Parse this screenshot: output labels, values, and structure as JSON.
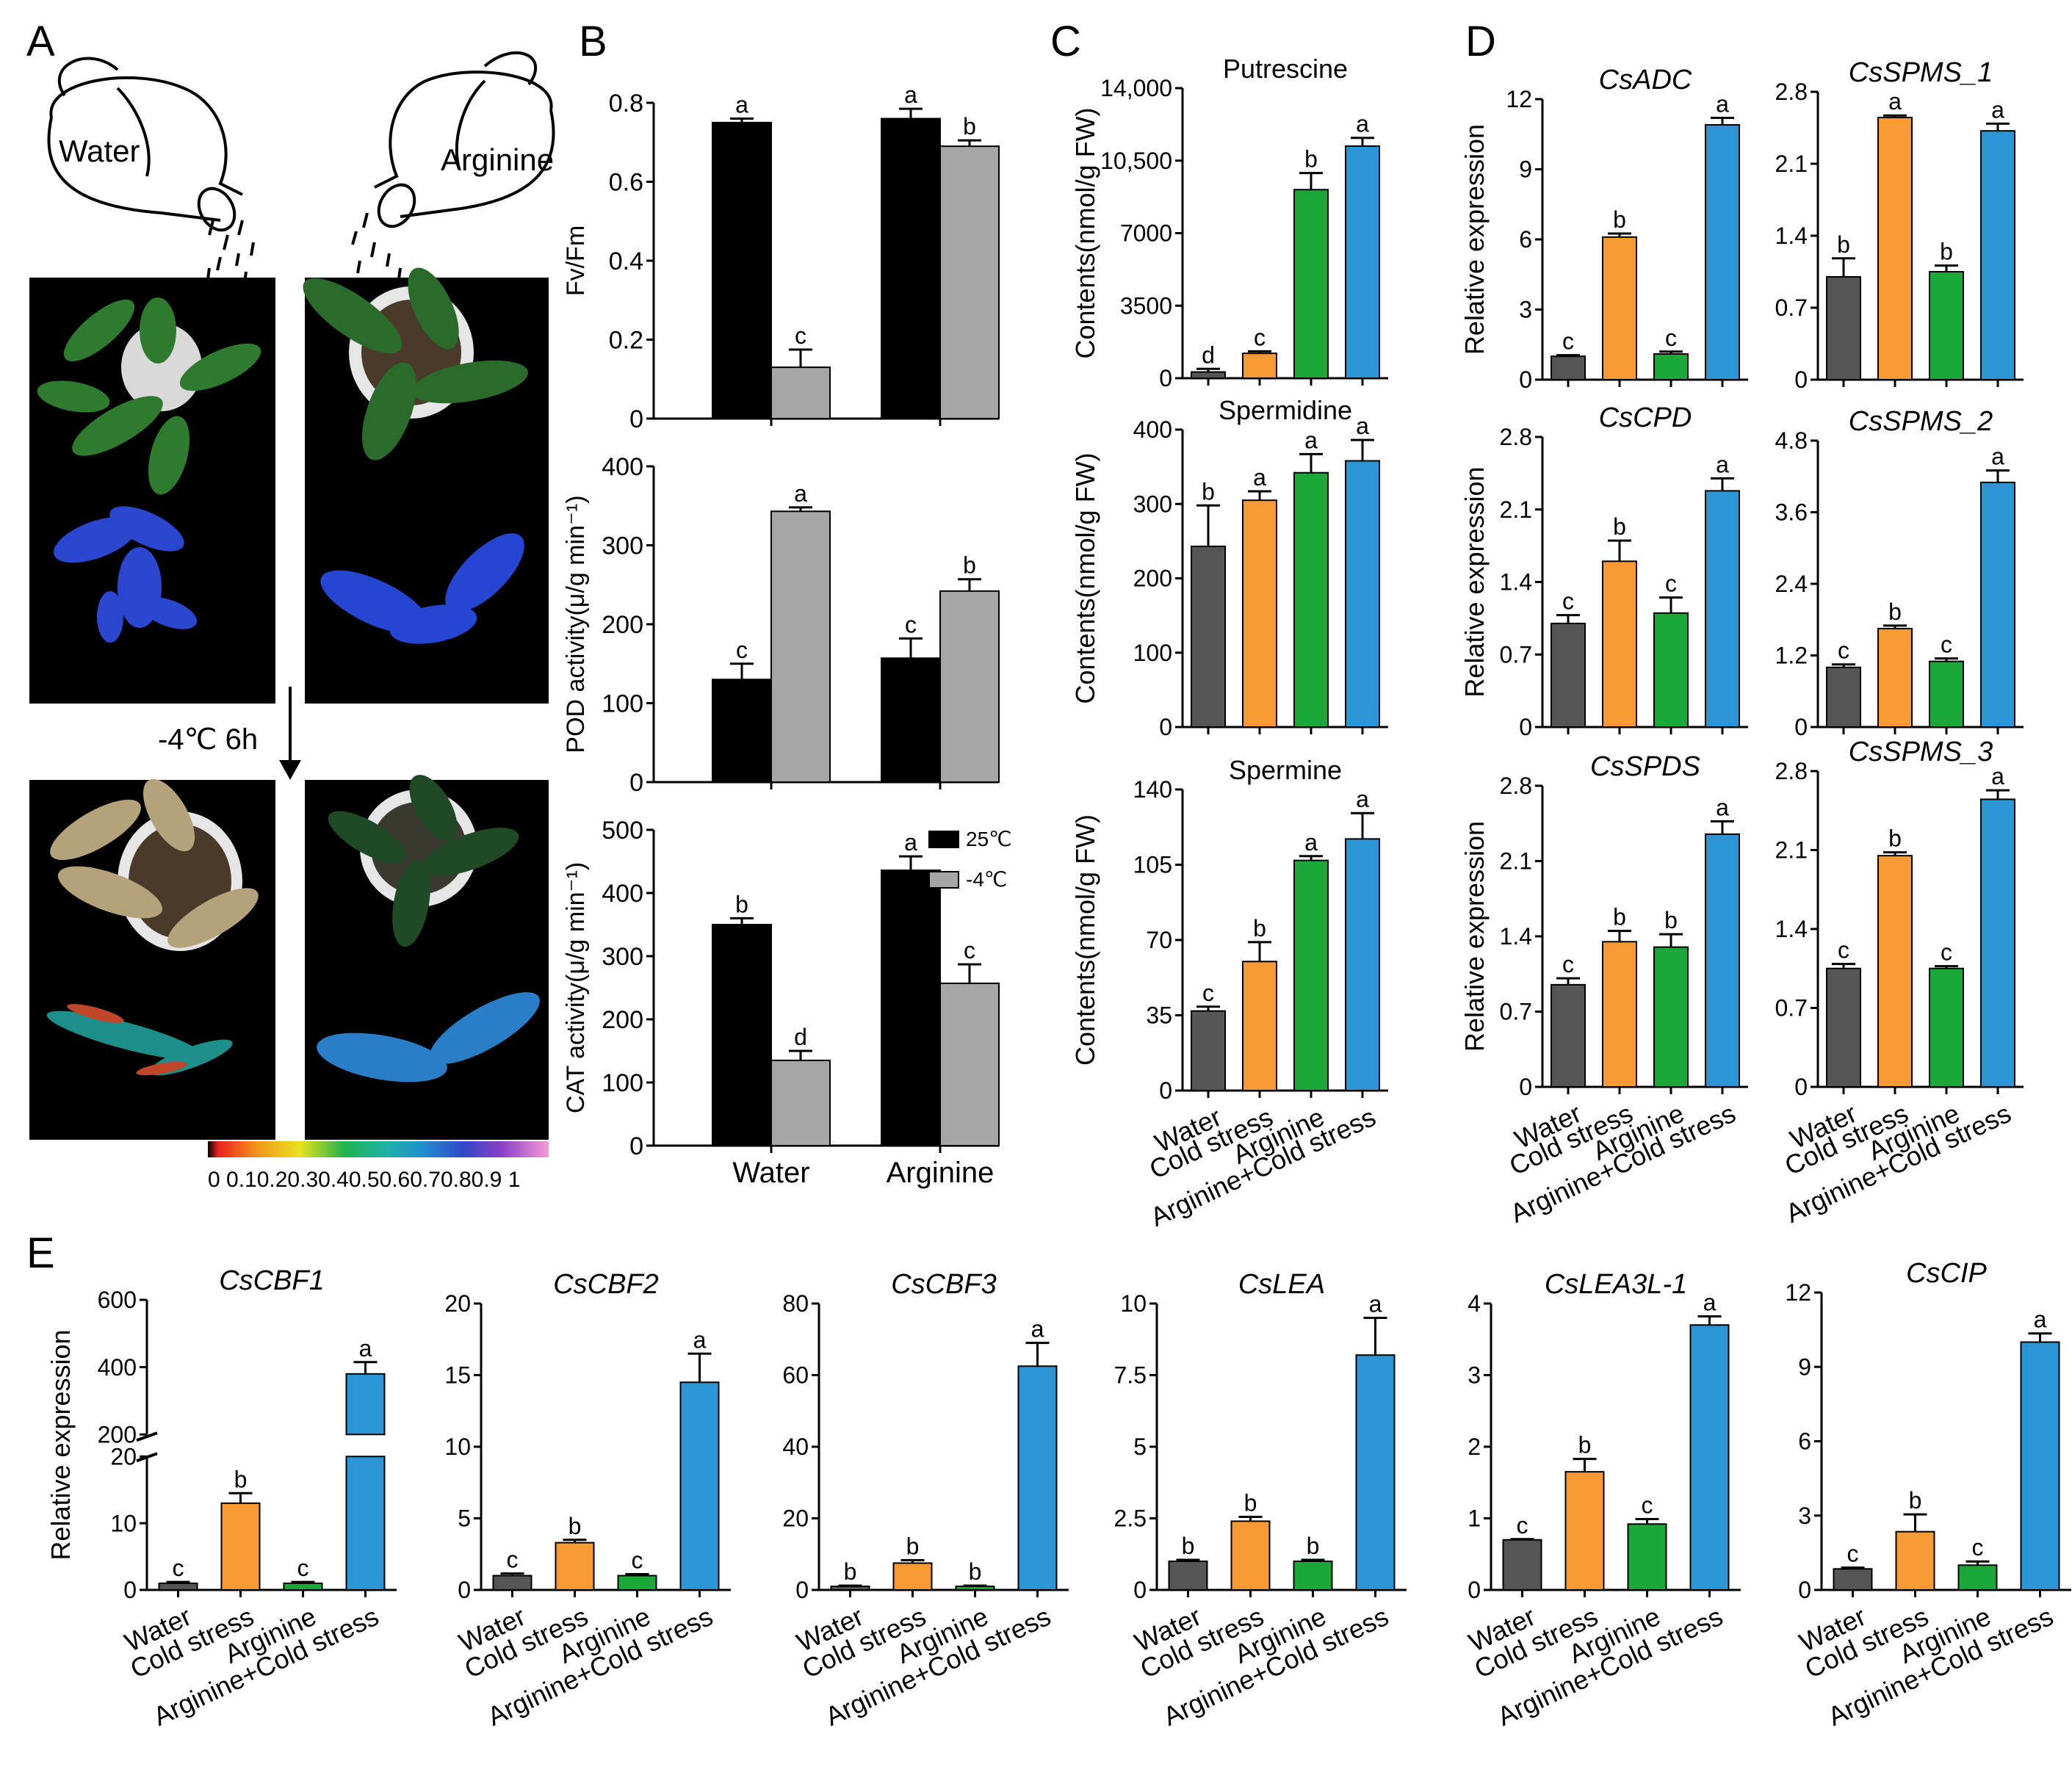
{
  "panel_labels": [
    "A",
    "B",
    "C",
    "D",
    "E"
  ],
  "colors": {
    "water": "#555555",
    "cold_stress": "#f79a34",
    "arginine": "#1aa83a",
    "arginine_cold": "#2b96d3",
    "temp_25": "#000000",
    "temp_minus4": "#a6a6a6"
  },
  "panel_a": {
    "can_left_label": "Water",
    "can_right_label": "Arginine",
    "treatment_label": "-4℃ 6h",
    "colorbar_ticks": [
      "0",
      "0.1",
      "0.2",
      "0.3",
      "0.4",
      "0.5",
      "0.6",
      "0.7",
      "0.8",
      "0.9",
      "1"
    ],
    "colorbar_text": "0   0.10.20.30.40.50.60.70.80.9 1"
  },
  "chart_data": [
    {
      "id": "B1",
      "type": "bar",
      "panel": "B",
      "categories": [
        "Water",
        "Arginine"
      ],
      "series": [
        {
          "name": "25℃",
          "values": [
            0.75,
            0.76
          ],
          "errors": [
            0.01,
            0.025
          ],
          "letters": [
            "a",
            "a"
          ]
        },
        {
          "name": "-4℃",
          "values": [
            0.13,
            0.69
          ],
          "errors": [
            0.045,
            0.015
          ],
          "letters": [
            "c",
            "b"
          ]
        }
      ],
      "ylabel": "Fv/Fm",
      "ylim": [
        0,
        0.8
      ],
      "yticks": [
        "0",
        "0.2",
        "0.4",
        "0.6",
        "0.8"
      ]
    },
    {
      "id": "B2",
      "type": "bar",
      "panel": "B",
      "categories": [
        "Water",
        "Arginine"
      ],
      "series": [
        {
          "name": "25℃",
          "values": [
            130,
            157
          ],
          "errors": [
            20,
            25
          ],
          "letters": [
            "c",
            "c"
          ]
        },
        {
          "name": "-4℃",
          "values": [
            343,
            242
          ],
          "errors": [
            5,
            15
          ],
          "letters": [
            "a",
            "b"
          ]
        }
      ],
      "ylabel": "POD activity(μ/g min⁻¹)",
      "ylim": [
        0,
        400
      ],
      "yticks": [
        "0",
        "100",
        "200",
        "300",
        "400"
      ]
    },
    {
      "id": "B3",
      "type": "bar",
      "panel": "B",
      "categories": [
        "Water",
        "Arginine"
      ],
      "series": [
        {
          "name": "25℃",
          "values": [
            350,
            436
          ],
          "errors": [
            10,
            22
          ],
          "letters": [
            "b",
            "a"
          ]
        },
        {
          "name": "-4℃",
          "values": [
            135,
            257
          ],
          "errors": [
            15,
            30
          ],
          "letters": [
            "d",
            "c"
          ]
        }
      ],
      "ylabel": "CAT activity(μ/g min⁻¹)",
      "ylim": [
        0,
        500
      ],
      "yticks": [
        "0",
        "100",
        "200",
        "300",
        "400",
        "500"
      ],
      "legend": [
        "25℃",
        "-4℃"
      ]
    },
    {
      "id": "C1",
      "type": "bar",
      "panel": "C",
      "title": "Putrescine",
      "categories": [
        "Water",
        "Cold stress",
        "Arginine",
        "Arginine+Cold stress"
      ],
      "values": [
        300,
        1200,
        9100,
        11200
      ],
      "errors": [
        150,
        100,
        800,
        400
      ],
      "letters": [
        "d",
        "c",
        "b",
        "a"
      ],
      "ylabel": "Contents(nmol/g FW)",
      "ylim": [
        0,
        14000
      ],
      "yticks": [
        "0",
        "3500",
        "7000",
        "10,500",
        "14,000"
      ]
    },
    {
      "id": "C2",
      "type": "bar",
      "panel": "C",
      "title": "Spermidine",
      "categories": [
        "Water",
        "Cold stress",
        "Arginine",
        "Arginine+Cold stress"
      ],
      "values": [
        243,
        305,
        342,
        358
      ],
      "errors": [
        55,
        12,
        25,
        28
      ],
      "letters": [
        "b",
        "a",
        "a",
        "a"
      ],
      "ylabel": "Contents(nmol/g FW)",
      "ylim": [
        0,
        400
      ],
      "yticks": [
        "0",
        "100",
        "200",
        "300",
        "400"
      ]
    },
    {
      "id": "C3",
      "type": "bar",
      "panel": "C",
      "title": "Spermine",
      "categories": [
        "Water",
        "Cold stress",
        "Arginine",
        "Arginine+Cold stress"
      ],
      "values": [
        37,
        60,
        107,
        117
      ],
      "errors": [
        2,
        9,
        2,
        12
      ],
      "letters": [
        "c",
        "b",
        "a",
        "a"
      ],
      "ylabel": "Contents(nmol/g FW)",
      "ylim": [
        0,
        140
      ],
      "yticks": [
        "0",
        "35",
        "70",
        "105",
        "140"
      ]
    },
    {
      "id": "D1",
      "type": "bar",
      "panel": "D",
      "title": "CsADC",
      "categories": [
        "Water",
        "Cold stress",
        "Arginine",
        "Arginine+Cold stress"
      ],
      "values": [
        1.0,
        6.1,
        1.1,
        10.9
      ],
      "errors": [
        0.05,
        0.15,
        0.1,
        0.3
      ],
      "letters": [
        "c",
        "b",
        "c",
        "a"
      ],
      "ylabel": "Relative expression",
      "ylim": [
        0,
        12
      ],
      "yticks": [
        "0",
        "3",
        "6",
        "9",
        "12"
      ]
    },
    {
      "id": "D2",
      "type": "bar",
      "panel": "D",
      "title": "CsSPMS_1",
      "categories": [
        "Water",
        "Cold stress",
        "Arginine",
        "Arginine+Cold stress"
      ],
      "values": [
        1.0,
        2.55,
        1.05,
        2.42
      ],
      "errors": [
        0.18,
        0.02,
        0.06,
        0.07
      ],
      "letters": [
        "b",
        "a",
        "b",
        "a"
      ],
      "ylabel": "",
      "ylim": [
        0,
        2.8
      ],
      "yticks": [
        "0",
        "0.7",
        "1.4",
        "2.1",
        "2.8"
      ]
    },
    {
      "id": "D3",
      "type": "bar",
      "panel": "D",
      "title": "CsCPD",
      "categories": [
        "Water",
        "Cold stress",
        "Arginine",
        "Arginine+Cold stress"
      ],
      "values": [
        1.0,
        1.6,
        1.1,
        2.28
      ],
      "errors": [
        0.08,
        0.2,
        0.15,
        0.12
      ],
      "letters": [
        "c",
        "b",
        "c",
        "a"
      ],
      "ylabel": "Relative expression",
      "ylim": [
        0,
        2.8
      ],
      "yticks": [
        "0",
        "0.7",
        "1.4",
        "2.1",
        "2.8"
      ]
    },
    {
      "id": "D4",
      "type": "bar",
      "panel": "D",
      "title": "CsSPMS_2",
      "categories": [
        "Water",
        "Cold stress",
        "Arginine",
        "Arginine+Cold stress"
      ],
      "values": [
        1.0,
        1.65,
        1.1,
        4.1
      ],
      "errors": [
        0.05,
        0.05,
        0.05,
        0.2
      ],
      "letters": [
        "c",
        "b",
        "c",
        "a"
      ],
      "ylabel": "",
      "ylim": [
        0,
        4.8
      ],
      "yticks": [
        "0",
        "1.2",
        "2.4",
        "3.6",
        "4.8"
      ]
    },
    {
      "id": "D5",
      "type": "bar",
      "panel": "D",
      "title": "CsSPDS",
      "categories": [
        "Water",
        "Cold stress",
        "Arginine",
        "Arginine+Cold stress"
      ],
      "values": [
        0.95,
        1.35,
        1.3,
        2.35
      ],
      "errors": [
        0.06,
        0.1,
        0.12,
        0.12
      ],
      "letters": [
        "c",
        "b",
        "b",
        "a"
      ],
      "ylabel": "Relative expression",
      "ylim": [
        0,
        2.8
      ],
      "yticks": [
        "0",
        "0.7",
        "1.4",
        "2.1",
        "2.8"
      ]
    },
    {
      "id": "D6",
      "type": "bar",
      "panel": "D",
      "title": "CsSPMS_3",
      "categories": [
        "Water",
        "Cold stress",
        "Arginine",
        "Arginine+Cold stress"
      ],
      "values": [
        1.05,
        2.05,
        1.05,
        2.55
      ],
      "errors": [
        0.04,
        0.03,
        0.02,
        0.08
      ],
      "letters": [
        "c",
        "b",
        "c",
        "a"
      ],
      "ylabel": "",
      "ylim": [
        0,
        2.8
      ],
      "yticks": [
        "0",
        "0.7",
        "1.4",
        "2.1",
        "2.8"
      ]
    },
    {
      "id": "E1",
      "type": "bar",
      "panel": "E",
      "title": "CsCBF1",
      "categories": [
        "Water",
        "Cold stress",
        "Arginine",
        "Arginine+Cold stress"
      ],
      "values": [
        1.0,
        13,
        1.0,
        380
      ],
      "errors": [
        0.2,
        1.5,
        0.2,
        35
      ],
      "letters": [
        "c",
        "b",
        "c",
        "a"
      ],
      "ylabel": "Relative expression",
      "broken_axis": [
        20,
        200
      ],
      "yticks": [
        "0",
        "10",
        "20",
        "200",
        "400",
        "600"
      ]
    },
    {
      "id": "E2",
      "type": "bar",
      "panel": "E",
      "title": "CsCBF2",
      "categories": [
        "Water",
        "Cold stress",
        "Arginine",
        "Arginine+Cold stress"
      ],
      "values": [
        1.0,
        3.3,
        1.0,
        14.5
      ],
      "errors": [
        0.15,
        0.2,
        0.1,
        2.0
      ],
      "letters": [
        "c",
        "b",
        "c",
        "a"
      ],
      "ylabel": "",
      "ylim": [
        0,
        20
      ],
      "yticks": [
        "0",
        "5",
        "10",
        "15",
        "20"
      ]
    },
    {
      "id": "E3",
      "type": "bar",
      "panel": "E",
      "title": "CsCBF3",
      "categories": [
        "Water",
        "Cold stress",
        "Arginine",
        "Arginine+Cold stress"
      ],
      "values": [
        1.0,
        7.5,
        1.0,
        62.5
      ],
      "errors": [
        0.2,
        0.8,
        0.2,
        6.5
      ],
      "letters": [
        "b",
        "b",
        "b",
        "a"
      ],
      "ylabel": "",
      "ylim": [
        0,
        80
      ],
      "yticks": [
        "0",
        "20",
        "40",
        "60",
        "80"
      ]
    },
    {
      "id": "E4",
      "type": "bar",
      "panel": "E",
      "title": "CsLEA",
      "categories": [
        "Water",
        "Cold stress",
        "Arginine",
        "Arginine+Cold stress"
      ],
      "values": [
        1.0,
        2.4,
        1.0,
        8.2
      ],
      "errors": [
        0.05,
        0.15,
        0.05,
        1.3
      ],
      "letters": [
        "b",
        "b",
        "b",
        "a"
      ],
      "ylabel": "",
      "ylim": [
        0,
        10
      ],
      "yticks": [
        "0",
        "2.5",
        "5",
        "7.5",
        "10"
      ]
    },
    {
      "id": "E5",
      "type": "bar",
      "panel": "E",
      "title": "CsLEA3L-1",
      "categories": [
        "Water",
        "Cold stress",
        "Arginine",
        "Arginine+Cold stress"
      ],
      "values": [
        0.7,
        1.65,
        0.92,
        3.7
      ],
      "errors": [
        0.01,
        0.18,
        0.07,
        0.12
      ],
      "letters": [
        "c",
        "b",
        "c",
        "a"
      ],
      "ylabel": "",
      "ylim": [
        0,
        4
      ],
      "yticks": [
        "0",
        "1",
        "2",
        "3",
        "4"
      ]
    },
    {
      "id": "E6",
      "type": "bar",
      "panel": "E",
      "title": "CsCIP",
      "categories": [
        "Water",
        "Cold stress",
        "Arginine",
        "Arginine+Cold stress"
      ],
      "values": [
        0.85,
        2.35,
        1.0,
        10.0
      ],
      "errors": [
        0.05,
        0.7,
        0.15,
        0.35
      ],
      "letters": [
        "c",
        "b",
        "c",
        "a"
      ],
      "ylabel": "",
      "ylim": [
        0,
        12
      ],
      "yticks": [
        "0",
        "3",
        "6",
        "9",
        "12"
      ]
    }
  ]
}
